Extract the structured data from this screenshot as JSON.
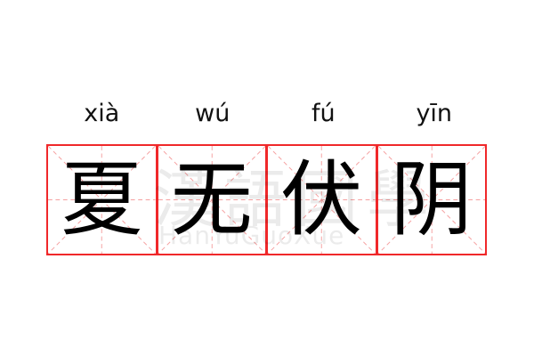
{
  "words": [
    {
      "pinyin": "xià",
      "hanzi": "夏"
    },
    {
      "pinyin": "wú",
      "hanzi": "无"
    },
    {
      "pinyin": "fú",
      "hanzi": "伏"
    },
    {
      "pinyin": "yīn",
      "hanzi": "阴"
    }
  ],
  "watermark": {
    "chinese": "漢語國學",
    "latin": "HanYuGuoXue"
  },
  "colors": {
    "border": "#f0282a",
    "guide": "#f5a0a0",
    "text": "#000000"
  }
}
